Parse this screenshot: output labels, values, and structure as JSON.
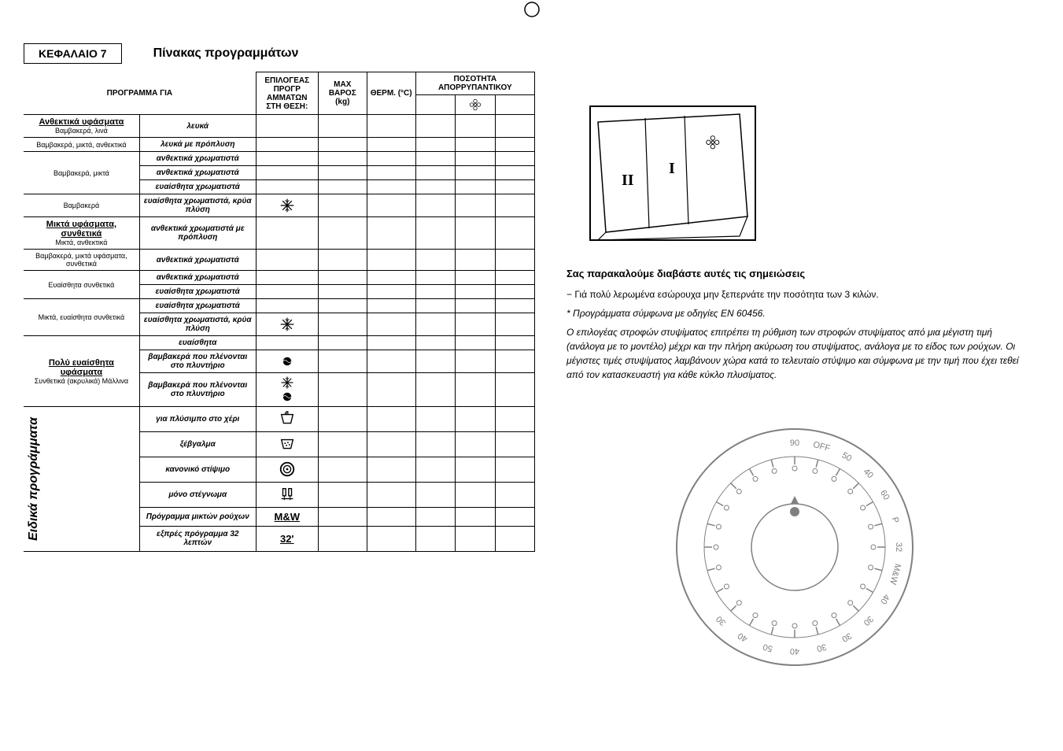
{
  "chapter_label": "ΚΕΦΑΛΑΙΟ 7",
  "title": "Πίνακας προγραμμάτων",
  "table": {
    "headers": {
      "program_for": "ΠΡΟΓΡΑΜΜΑ ΓΙΑ",
      "selector": "ΕΠΙΛΟΓΕΑΣ ΠΡΟΓΡ ΑΜΜΑΤΩΝ ΣΤΗ ΘΕΣΗ:",
      "max_weight": "MAX ΒΑΡΟΣ (kg)",
      "temp": "ΘΕΡΜ. (°C)",
      "detergent_qty": "ΠΟΣΟΤΗΤΑ ΑΠΟΡΡΥΠΑΝΤΙΚΟΥ"
    },
    "groups": [
      {
        "category_head": "Ανθεκτικά υφάσματα",
        "category_sub": "Βαμβακερά, λινά",
        "rows": [
          {
            "fabric": "",
            "option": "λευκά",
            "icon": ""
          }
        ]
      },
      {
        "category_head": "",
        "category_sub": "Βαμβακερά, μικτά, ανθεκτικά",
        "rows": [
          {
            "fabric": "",
            "option": "λευκά με πρόπλυση",
            "icon": ""
          }
        ]
      },
      {
        "category_head": "",
        "category_sub": "Βαμβακερά, μικτά",
        "rows": [
          {
            "fabric": "",
            "option": "ανθεκτικά χρωματιστά",
            "icon": ""
          },
          {
            "fabric": "",
            "option": "ανθεκτικά χρωματιστά",
            "icon": ""
          },
          {
            "fabric": "",
            "option": "ευαίσθητα χρωματιστά",
            "icon": ""
          }
        ]
      },
      {
        "category_head": "",
        "category_sub": "Βαμβακερά",
        "rows": [
          {
            "fabric": "",
            "option": "ευαίσθητα χρωματιστά, κρύα πλύση",
            "icon": "snow"
          }
        ]
      },
      {
        "category_head": "Μικτά υφάσματα, συνθετικά",
        "category_sub": "Μικτά, ανθεκτικά",
        "rows": [
          {
            "fabric": "",
            "option": "ανθεκτικά χρωματιστά με πρόπλυση",
            "icon": ""
          }
        ]
      },
      {
        "category_head": "",
        "category_sub": "Βαμβακερά, μικτά υφάσματα, συνθετικά",
        "rows": [
          {
            "fabric": "",
            "option": "ανθεκτικά χρωματιστά",
            "icon": ""
          }
        ]
      },
      {
        "category_head": "",
        "category_sub": "Ευαίσθητα συνθετικά",
        "rows": [
          {
            "fabric": "",
            "option": "ανθεκτικά χρωματιστά",
            "icon": ""
          },
          {
            "fabric": "",
            "option": "ευαίσθητα χρωματιστά",
            "icon": ""
          }
        ]
      },
      {
        "category_head": "",
        "category_sub": "Μικτά, ευαίσθητα συνθετικά",
        "rows": [
          {
            "fabric": "",
            "option": "ευαίσθητα χρωματιστά",
            "icon": ""
          },
          {
            "fabric": "",
            "option": "ευαίσθητα χρωματιστά, κρύα πλύση",
            "icon": "snow"
          }
        ]
      },
      {
        "category_head": "Πολύ ευαίσθητα υφάσματα",
        "category_sub": "Συνθετικά (ακρυλικά) Μάλλινα",
        "rows": [
          {
            "fabric": "",
            "option": "ευαίσθητα",
            "icon": ""
          },
          {
            "fabric": "",
            "option": "βαμβακερά που πλένονται στο πλυντήριο",
            "icon": "wool"
          },
          {
            "fabric": "",
            "option": "βαμβακερά που πλένονται στο πλυντήριο",
            "icon": "snow_wool"
          }
        ]
      }
    ],
    "special_section_label": "Ειδικά προγράμματα",
    "special_rows": [
      {
        "option": "για πλύσιμπο στο χέρι",
        "icon": "hand"
      },
      {
        "option": "ξέβγαλμα",
        "icon": "rinse"
      },
      {
        "option": "κανονικό στίψιμο",
        "icon": "spin"
      },
      {
        "option": "μόνο στέγνωμα",
        "icon": "drain"
      },
      {
        "option": "Πρόγραμμα μικτών ρούχων",
        "icon": "mw"
      },
      {
        "option": "εξπρές πρόγραμμα 32 λεπτών",
        "icon": "p32"
      }
    ]
  },
  "icons": {
    "mw_text": "M&W",
    "p32_text": "32'"
  },
  "drawer": {
    "label_I": "I",
    "label_II": "II"
  },
  "notes": {
    "heading": "Σας παρακαλούμε διαβάστε αυτές τις σημειώσεις",
    "line1": "− Γιά πολύ λερωμένα εσώρουχα μην ξεπερνάτε την ποσότητα των 3 κιλών.",
    "line2_star": "* Προγράμματα σύμφωνα με οδηγίες  EN 60456.",
    "para": "Ο επιλογέας στροφών στυψίματος επιτρέπει τη ρύθμιση των στροφών στυψίματος από μια μέγιστη τιμή (ανάλογα με το μοντέλο) μέχρι και την πλήρη ακύρωση του στυψίματος, ανάλογα με το  είδος των ρούχων. Οι μέγιστες τιμές στυψίματος λαμβάνουν χώρα κατά το τελευταίο στύψιμο και σύμφωνα με την τιμή που έχει τεθεί από τον κατασκευαστή για κάθε κύκλο πλυσίματος."
  },
  "dial": {
    "labels": [
      "90",
      "OFF",
      "50",
      "40",
      "60",
      "P",
      "32",
      "M&W",
      "40",
      "30",
      "30",
      "30",
      "40",
      "50",
      "40",
      "30"
    ],
    "stroke": "#808080",
    "font_size": 11
  },
  "colors": {
    "border": "#000000",
    "text": "#000000",
    "bg": "#ffffff",
    "dial_gray": "#808080"
  }
}
